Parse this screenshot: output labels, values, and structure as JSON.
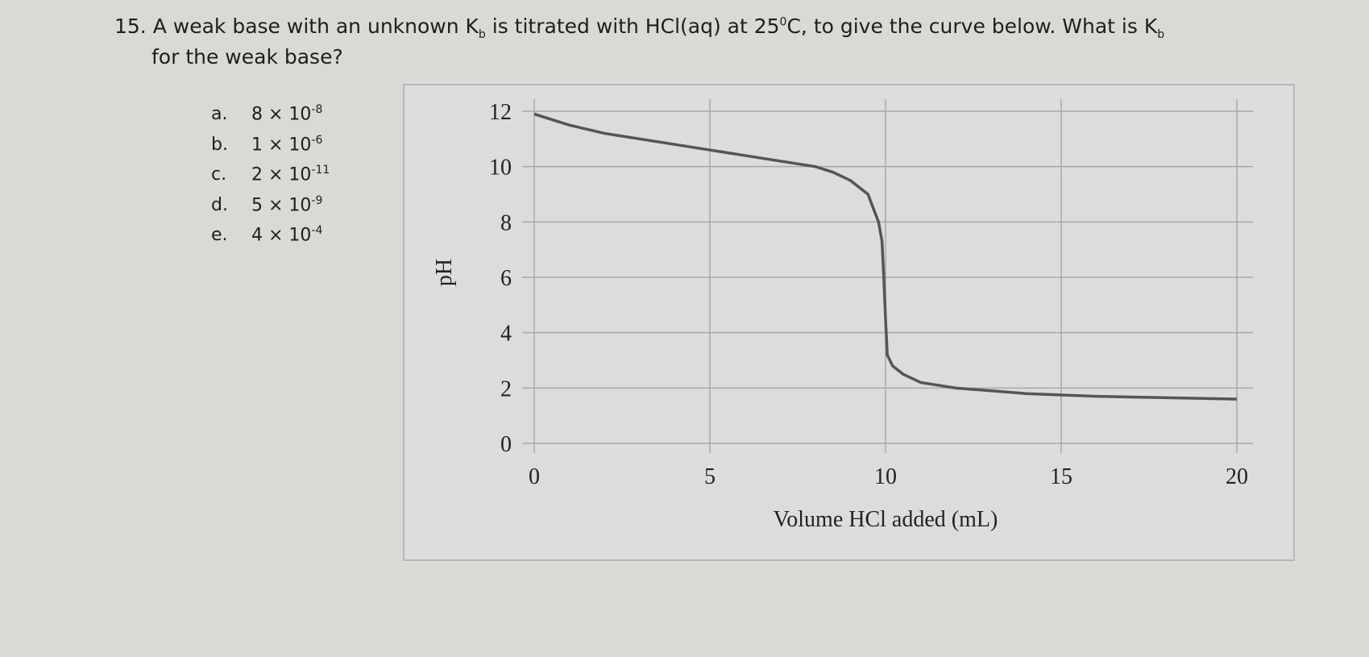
{
  "question": {
    "number": "15.",
    "line1": [
      "A weak base with an unknown K",
      "b",
      " is titrated with HCl(aq) at 25",
      "0",
      "C, to give the curve below. What is K",
      "b"
    ],
    "line2": "for the weak base?"
  },
  "options": [
    {
      "letter": "a.",
      "mantissa": "8 × 10",
      "exponent": "-8"
    },
    {
      "letter": "b.",
      "mantissa": "1 × 10",
      "exponent": "-6"
    },
    {
      "letter": "c.",
      "mantissa": "2 × 10",
      "exponent": "-11"
    },
    {
      "letter": "d.",
      "mantissa": "5 × 10",
      "exponent": "-9"
    },
    {
      "letter": "e.",
      "mantissa": "4 × 10",
      "exponent": "-4"
    }
  ],
  "chart_data": {
    "type": "line",
    "xlabel": "Volume HCl added (mL)",
    "ylabel": "pH",
    "x": [
      0,
      1,
      2,
      3,
      4,
      5,
      6,
      7,
      8,
      8.5,
      9,
      9.5,
      9.8,
      9.9,
      9.95,
      10,
      10.05,
      10.2,
      10.5,
      11,
      12,
      13,
      14,
      16,
      18,
      20
    ],
    "series": [
      {
        "color": "#555555",
        "values": [
          11.9,
          11.5,
          11.2,
          11,
          10.8,
          10.6,
          10.4,
          10.2,
          10,
          9.8,
          9.5,
          9,
          8,
          7.3,
          6,
          4.5,
          3.2,
          2.8,
          2.5,
          2.2,
          2,
          1.9,
          1.8,
          1.7,
          1.65,
          1.6
        ]
      }
    ],
    "xlim": [
      0,
      20
    ],
    "ylim": [
      0,
      12
    ],
    "xticks": [
      0,
      5,
      10,
      15,
      20
    ],
    "yticks": [
      0,
      2,
      4,
      6,
      8,
      10,
      12
    ],
    "grid": true
  }
}
